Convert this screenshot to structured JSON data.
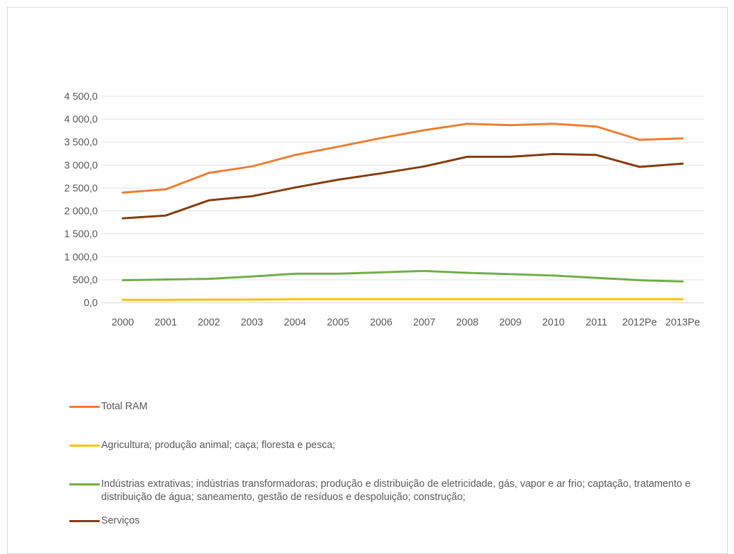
{
  "chart_data": {
    "type": "line",
    "title": "",
    "xlabel": "",
    "ylabel": "",
    "ylim": [
      0,
      4500
    ],
    "y_ticks": [
      0,
      500,
      1000,
      1500,
      2000,
      2500,
      3000,
      3500,
      4000,
      4500
    ],
    "y_tick_labels": [
      "0,0",
      "500,0",
      "1 000,0",
      "1 500,0",
      "2 000,0",
      "2 500,0",
      "3 000,0",
      "3 500,0",
      "4 000,0",
      "4 500,0"
    ],
    "categories": [
      "2000",
      "2001",
      "2002",
      "2003",
      "2004",
      "2005",
      "2006",
      "2007",
      "2008",
      "2009",
      "2010",
      "2011",
      "2012Pe",
      "2013Pe"
    ],
    "grid": "horizontal",
    "legend_position": "bottom",
    "series": [
      {
        "name": "Total RAM",
        "color": "#ED7D31",
        "values": [
          2400,
          2470,
          2830,
          2970,
          3220,
          3400,
          3590,
          3760,
          3900,
          3870,
          3900,
          3840,
          3550,
          3580
        ]
      },
      {
        "name": "Agricultura; produção animal; caça; floresta e pesca;",
        "color": "#FFC000",
        "values": [
          60,
          60,
          65,
          65,
          75,
          75,
          75,
          75,
          75,
          75,
          75,
          75,
          75,
          75
        ]
      },
      {
        "name": "Indústrias extrativas; indústrias transformadoras; produção e distribuição de eletricidade, gás, vapor e ar frio; captação, tratamento e distribuição de água; saneamento, gestão de resíduos e despoluição; construção;",
        "color": "#70AD47",
        "values": [
          490,
          505,
          520,
          570,
          630,
          630,
          660,
          690,
          650,
          620,
          590,
          540,
          490,
          460
        ]
      },
      {
        "name": "Serviços",
        "color": "#843C0C",
        "values": [
          1840,
          1900,
          2230,
          2320,
          2510,
          2680,
          2820,
          2970,
          3180,
          3180,
          3240,
          3220,
          2960,
          3030
        ]
      }
    ]
  }
}
